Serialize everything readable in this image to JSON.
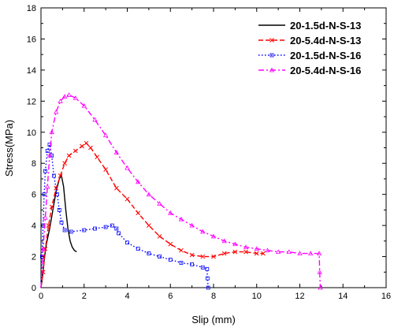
{
  "chart_data": {
    "type": "line",
    "title": "",
    "xlabel": "Slip (mm)",
    "ylabel": "Stress(MPa)",
    "xlim": [
      0,
      16
    ],
    "ylim": [
      0,
      18
    ],
    "xticks": [
      "0",
      "2",
      "4",
      "6",
      "8",
      "10",
      "12",
      "14",
      "16"
    ],
    "yticks": [
      "0",
      "2",
      "4",
      "6",
      "8",
      "10",
      "12",
      "14",
      "16",
      "18"
    ],
    "grid": false,
    "legend_position": "top-right",
    "series": [
      {
        "name": "20-1.5d-N-S-13",
        "color": "#000000",
        "style": "solid",
        "marker": "none",
        "points": [
          [
            0,
            0
          ],
          [
            0.08,
            0.8
          ],
          [
            0.15,
            1.8
          ],
          [
            0.25,
            2.8
          ],
          [
            0.4,
            3.8
          ],
          [
            0.55,
            5.0
          ],
          [
            0.7,
            6.2
          ],
          [
            0.85,
            7.0
          ],
          [
            0.95,
            7.2
          ],
          [
            1.05,
            6.5
          ],
          [
            1.15,
            5.0
          ],
          [
            1.25,
            3.8
          ],
          [
            1.35,
            3.0
          ],
          [
            1.45,
            2.6
          ],
          [
            1.55,
            2.4
          ],
          [
            1.65,
            2.3
          ]
        ]
      },
      {
        "name": "20-5.4d-N-S-13",
        "color": "#ff0000",
        "style": "dashed",
        "marker": "x",
        "points": [
          [
            0,
            0
          ],
          [
            0.1,
            1.0
          ],
          [
            0.2,
            2.5
          ],
          [
            0.35,
            4.0
          ],
          [
            0.5,
            5.2
          ],
          [
            0.7,
            6.4
          ],
          [
            0.9,
            7.2
          ],
          [
            1.1,
            8.0
          ],
          [
            1.3,
            8.5
          ],
          [
            1.6,
            8.8
          ],
          [
            1.9,
            9.1
          ],
          [
            2.1,
            9.3
          ],
          [
            2.3,
            9.0
          ],
          [
            2.6,
            8.4
          ],
          [
            3.0,
            7.6
          ],
          [
            3.5,
            6.4
          ],
          [
            4.0,
            5.7
          ],
          [
            4.5,
            4.8
          ],
          [
            5.0,
            4.0
          ],
          [
            5.5,
            3.3
          ],
          [
            6.0,
            2.8
          ],
          [
            6.5,
            2.4
          ],
          [
            7.0,
            2.1
          ],
          [
            7.5,
            2.0
          ],
          [
            8.0,
            2.0
          ],
          [
            8.5,
            2.2
          ],
          [
            9.0,
            2.3
          ],
          [
            9.5,
            2.3
          ],
          [
            10.0,
            2.2
          ],
          [
            10.3,
            2.2
          ]
        ]
      },
      {
        "name": "20-1.5d-N-S-16",
        "color": "#0000ff",
        "style": "dotted",
        "marker": "square",
        "points": [
          [
            0,
            0
          ],
          [
            0.05,
            2.0
          ],
          [
            0.1,
            4.0
          ],
          [
            0.15,
            6.0
          ],
          [
            0.2,
            7.5
          ],
          [
            0.3,
            8.8
          ],
          [
            0.4,
            9.2
          ],
          [
            0.5,
            8.5
          ],
          [
            0.6,
            7.2
          ],
          [
            0.75,
            6.0
          ],
          [
            0.85,
            5.0
          ],
          [
            0.95,
            4.2
          ],
          [
            1.1,
            3.7
          ],
          [
            1.4,
            3.6
          ],
          [
            2.0,
            3.7
          ],
          [
            2.5,
            3.8
          ],
          [
            3.0,
            3.9
          ],
          [
            3.3,
            4.0
          ],
          [
            3.5,
            3.8
          ],
          [
            3.6,
            3.5
          ],
          [
            4.0,
            2.9
          ],
          [
            4.5,
            2.5
          ],
          [
            5.0,
            2.2
          ],
          [
            5.5,
            2.0
          ],
          [
            6.0,
            1.8
          ],
          [
            6.5,
            1.6
          ],
          [
            7.0,
            1.5
          ],
          [
            7.5,
            1.3
          ],
          [
            7.7,
            1.2
          ],
          [
            7.72,
            0.6
          ],
          [
            7.75,
            0
          ]
        ]
      },
      {
        "name": "20-5.4d-N-S-16",
        "color": "#ff00ff",
        "style": "dash-dot",
        "marker": "triangle",
        "points": [
          [
            0,
            0
          ],
          [
            0.1,
            2.5
          ],
          [
            0.2,
            4.5
          ],
          [
            0.3,
            6.5
          ],
          [
            0.4,
            8.5
          ],
          [
            0.5,
            10.0
          ],
          [
            0.7,
            11.3
          ],
          [
            0.9,
            12.0
          ],
          [
            1.1,
            12.3
          ],
          [
            1.3,
            12.4
          ],
          [
            1.6,
            12.2
          ],
          [
            2.0,
            11.7
          ],
          [
            2.5,
            10.8
          ],
          [
            3.0,
            9.8
          ],
          [
            3.5,
            8.7
          ],
          [
            4.0,
            7.7
          ],
          [
            4.5,
            6.8
          ],
          [
            5.0,
            6.0
          ],
          [
            5.5,
            5.4
          ],
          [
            6.0,
            4.8
          ],
          [
            6.5,
            4.4
          ],
          [
            7.0,
            4.0
          ],
          [
            7.5,
            3.6
          ],
          [
            8.0,
            3.3
          ],
          [
            8.5,
            3.0
          ],
          [
            9.0,
            2.8
          ],
          [
            9.5,
            2.6
          ],
          [
            10.0,
            2.5
          ],
          [
            10.5,
            2.4
          ],
          [
            11.0,
            2.3
          ],
          [
            11.5,
            2.3
          ],
          [
            12.0,
            2.2
          ],
          [
            12.5,
            2.2
          ],
          [
            12.9,
            2.2
          ],
          [
            12.92,
            1.0
          ],
          [
            12.95,
            0
          ]
        ]
      }
    ]
  }
}
